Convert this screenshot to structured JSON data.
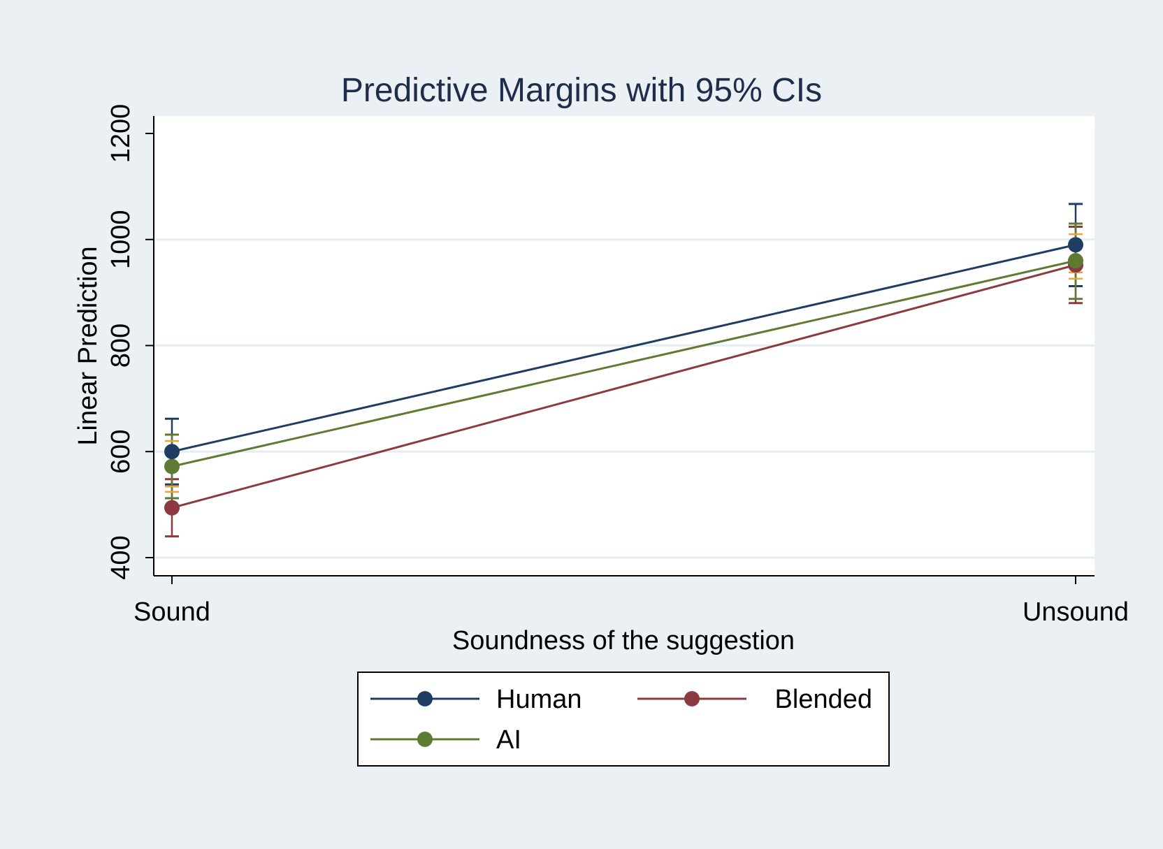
{
  "chart_data": {
    "type": "line",
    "title": "Predictive Margins with 95% CIs",
    "xlabel": "Soundness of the suggestion",
    "ylabel": "Linear Prediction",
    "categories": [
      "Sound",
      "Unsound"
    ],
    "ylim": [
      400,
      1200
    ],
    "yticks": [
      400,
      600,
      800,
      1000,
      1200
    ],
    "grid": true,
    "legend_position": "bottom",
    "series": [
      {
        "name": "Human",
        "color": "#1f3d63",
        "values": [
          600,
          990
        ],
        "ci_low": [
          538,
          912
        ],
        "ci_high": [
          662,
          1067
        ]
      },
      {
        "name": "Blended",
        "color": "#8b3a3f",
        "values": [
          494,
          952
        ],
        "ci_low": [
          440,
          880
        ],
        "ci_high": [
          548,
          1024
        ]
      },
      {
        "name": "AI",
        "color": "#5f7b33",
        "values": [
          572,
          960
        ],
        "ci_low": [
          512,
          888
        ],
        "ci_high": [
          632,
          1030
        ]
      }
    ],
    "ci_cap_accent_color": "#e8a33a",
    "plot_background": "#ffffff",
    "page_background": "#eaf0f3",
    "gridline_color": "#e6eef1",
    "text_color": "#1f2d4a"
  }
}
